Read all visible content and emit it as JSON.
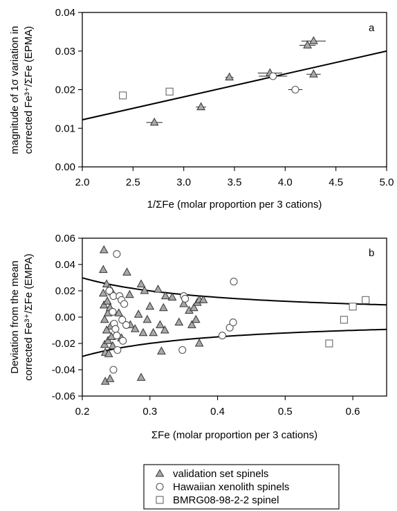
{
  "chart_data": [
    {
      "panel": "a",
      "type": "scatter",
      "ylabel_line1": "magnitude of 1σ variation in",
      "ylabel_line2": "corrected Fe³⁺/ΣFe (EPMA)",
      "xlabel": "1/ΣFe (molar proportion per 3 cations)",
      "xlim": [
        2.0,
        5.0
      ],
      "ylim": [
        0.0,
        0.04
      ],
      "xticks": [
        "2.0",
        "2.5",
        "3.0",
        "3.5",
        "4.0",
        "4.5",
        "5.0"
      ],
      "yticks": [
        "0.00",
        "0.01",
        "0.02",
        "0.03",
        "0.04"
      ],
      "fit_line": {
        "x": [
          2.0,
          5.0
        ],
        "y": [
          0.0122,
          0.03
        ]
      },
      "series": [
        {
          "marker": "triangle",
          "points": [
            {
              "x": 2.71,
              "y": 0.0115,
              "xerr": 0.08
            },
            {
              "x": 3.17,
              "y": 0.0155,
              "xerr": 0.05
            },
            {
              "x": 3.45,
              "y": 0.0232,
              "xerr": 0.04
            },
            {
              "x": 3.85,
              "y": 0.0243,
              "xerr": 0.12
            },
            {
              "x": 4.22,
              "y": 0.0315,
              "xerr": 0.08
            },
            {
              "x": 4.28,
              "y": 0.0326,
              "xerr": 0.12
            },
            {
              "x": 4.28,
              "y": 0.024,
              "xerr": 0.07
            }
          ]
        },
        {
          "marker": "circle",
          "points": [
            {
              "x": 3.88,
              "y": 0.0235,
              "xerr": 0.14
            },
            {
              "x": 4.1,
              "y": 0.02,
              "xerr": 0.07
            }
          ]
        },
        {
          "marker": "square",
          "points": [
            {
              "x": 2.4,
              "y": 0.0185,
              "xerr": 0.0
            },
            {
              "x": 2.86,
              "y": 0.0195,
              "xerr": 0.0
            }
          ]
        }
      ]
    },
    {
      "panel": "b",
      "type": "scatter",
      "ylabel_line1": "Deviation from the mean",
      "ylabel_line2": "corrected Fe³⁺/ΣFe (EMPA)",
      "xlabel": "ΣFe (molar proportion per 3 cations)",
      "xlim": [
        0.2,
        0.65
      ],
      "ylim": [
        -0.06,
        0.06
      ],
      "xticks": [
        "0.2",
        "0.3",
        "0.4",
        "0.5",
        "0.6"
      ],
      "yticks": [
        "0.06",
        "0.04",
        "0.02",
        "0.00",
        "-0.02",
        "-0.04",
        "-0.06"
      ],
      "envelope": {
        "a": 0.000178,
        "b": 0.00594
      },
      "series": [
        {
          "marker": "triangle",
          "points": [
            [
              0.232,
              0.051
            ],
            [
              0.231,
              0.036
            ],
            [
              0.231,
              0.018
            ],
            [
              0.232,
              0.009
            ],
            [
              0.233,
              -0.002
            ],
            [
              0.233,
              -0.021
            ],
            [
              0.234,
              -0.027
            ],
            [
              0.236,
              0.025
            ],
            [
              0.237,
              0.012
            ],
            [
              0.238,
              0.003
            ],
            [
              0.238,
              -0.018
            ],
            [
              0.239,
              -0.028
            ],
            [
              0.24,
              0.022
            ],
            [
              0.241,
              0.007
            ],
            [
              0.242,
              -0.007
            ],
            [
              0.243,
              -0.015
            ],
            [
              0.244,
              0.019
            ],
            [
              0.245,
              -0.022
            ],
            [
              0.234,
              -0.049
            ],
            [
              0.241,
              -0.047
            ],
            [
              0.254,
              0.003
            ],
            [
              0.258,
              -0.016
            ],
            [
              0.266,
              0.034
            ],
            [
              0.27,
              0.017
            ],
            [
              0.271,
              -0.006
            ],
            [
              0.283,
              0.002
            ],
            [
              0.287,
              0.025
            ],
            [
              0.29,
              -0.012
            ],
            [
              0.292,
              0.02
            ],
            [
              0.296,
              -0.002
            ],
            [
              0.3,
              0.008
            ],
            [
              0.305,
              -0.012
            ],
            [
              0.312,
              0.021
            ],
            [
              0.315,
              -0.006
            ],
            [
              0.317,
              -0.026
            ],
            [
              0.32,
              0.007
            ],
            [
              0.322,
              -0.01
            ],
            [
              0.323,
              0.016
            ],
            [
              0.333,
              0.015
            ],
            [
              0.343,
              -0.004
            ],
            [
              0.35,
              0.01
            ],
            [
              0.358,
              0.005
            ],
            [
              0.362,
              -0.006
            ],
            [
              0.365,
              0.007
            ],
            [
              0.368,
              -0.002
            ],
            [
              0.37,
              0.011
            ],
            [
              0.373,
              0.013
            ],
            [
              0.373,
              -0.02
            ],
            [
              0.379,
              0.013
            ],
            [
              0.287,
              -0.046
            ],
            [
              0.236,
              -0.01
            ],
            [
              0.278,
              -0.009
            ]
          ]
        },
        {
          "marker": "circle",
          "points": [
            [
              0.251,
              0.048
            ],
            [
              0.24,
              0.02
            ],
            [
              0.246,
              0.016
            ],
            [
              0.245,
              0.004
            ],
            [
              0.247,
              -0.005
            ],
            [
              0.249,
              -0.009
            ],
            [
              0.251,
              -0.014
            ],
            [
              0.255,
              0.016
            ],
            [
              0.258,
              0.013
            ],
            [
              0.259,
              -0.002
            ],
            [
              0.26,
              -0.018
            ],
            [
              0.262,
              0.01
            ],
            [
              0.265,
              -0.006
            ],
            [
              0.246,
              -0.04
            ],
            [
              0.252,
              -0.025
            ],
            [
              0.348,
              -0.025
            ],
            [
              0.35,
              0.016
            ],
            [
              0.352,
              0.014
            ],
            [
              0.407,
              -0.014
            ],
            [
              0.418,
              -0.008
            ],
            [
              0.423,
              -0.004
            ],
            [
              0.424,
              0.027
            ]
          ]
        },
        {
          "marker": "square",
          "points": [
            [
              0.565,
              -0.02
            ],
            [
              0.587,
              -0.002
            ],
            [
              0.6,
              0.008
            ],
            [
              0.619,
              0.013
            ]
          ]
        }
      ]
    }
  ],
  "legend": {
    "items": [
      {
        "marker": "triangle",
        "label": "validation set spinels"
      },
      {
        "marker": "circle",
        "label": "Hawaiian xenolith spinels"
      },
      {
        "marker": "square",
        "label": "BMRG08-98-2-2 spinel"
      }
    ]
  }
}
